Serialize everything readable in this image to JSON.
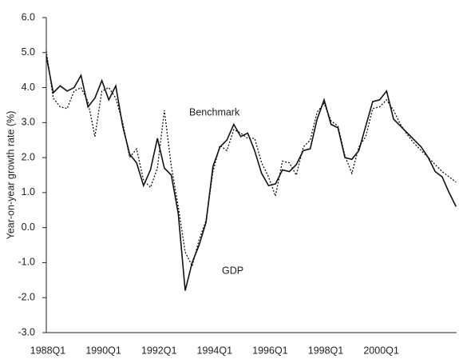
{
  "chart_data": {
    "type": "line",
    "y_label": "Year-on-year growth rate (%)",
    "annotations": [
      "Benchmark",
      "GDP"
    ],
    "categories": [
      "1988Q1",
      null,
      null,
      null,
      null,
      null,
      null,
      null,
      "1990Q1",
      null,
      null,
      null,
      null,
      null,
      null,
      null,
      "1992Q1",
      null,
      null,
      null,
      null,
      null,
      null,
      null,
      "1994Q1",
      null,
      null,
      null,
      null,
      null,
      null,
      null,
      "1996Q1",
      null,
      null,
      null,
      null,
      null,
      null,
      null,
      "1998Q1",
      null,
      null,
      null,
      null,
      null,
      null,
      null,
      "2000Q1",
      null,
      null,
      null,
      null,
      null,
      null,
      null,
      null,
      null,
      null,
      null
    ],
    "series": [
      {
        "name": "GDP",
        "color": "#111111",
        "style": "solid",
        "values": [
          4.9,
          3.85,
          4.05,
          3.9,
          4.0,
          4.35,
          3.45,
          3.7,
          4.2,
          3.65,
          4.05,
          2.9,
          2.1,
          1.85,
          1.2,
          1.65,
          2.55,
          1.7,
          1.5,
          0.4,
          -1.8,
          -1.0,
          -0.5,
          0.15,
          1.75,
          2.3,
          2.5,
          2.95,
          2.6,
          2.7,
          2.2,
          1.55,
          1.2,
          1.25,
          1.65,
          1.6,
          1.8,
          2.2,
          2.25,
          3.1,
          3.65,
          2.95,
          2.85,
          2.0,
          1.95,
          2.2,
          2.9,
          3.6,
          3.65,
          3.9,
          3.1,
          2.9,
          2.7,
          2.5,
          2.3,
          2.0,
          1.6,
          1.45,
          1.0,
          0.6
        ]
      },
      {
        "name": "Benchmark",
        "color": "#111111",
        "style": "dotted",
        "values": [
          5.05,
          3.7,
          3.45,
          3.4,
          3.9,
          4.0,
          3.6,
          2.6,
          3.9,
          4.0,
          3.7,
          3.0,
          2.0,
          2.25,
          1.35,
          1.15,
          1.7,
          3.35,
          1.75,
          0.6,
          -0.7,
          -1.1,
          -0.35,
          0.2,
          1.6,
          2.35,
          2.2,
          2.8,
          2.7,
          2.55,
          2.55,
          1.85,
          1.45,
          0.9,
          1.9,
          1.85,
          1.5,
          2.3,
          2.5,
          3.3,
          3.55,
          3.05,
          2.9,
          2.05,
          1.55,
          2.3,
          2.6,
          3.4,
          3.45,
          3.65,
          3.35,
          2.95,
          2.65,
          2.4,
          2.2,
          2.0,
          1.8,
          1.6,
          1.45,
          1.3
        ]
      }
    ],
    "ylim": [
      -3,
      6
    ],
    "yticks": [
      {
        "value": -3,
        "label": "-3.0"
      },
      {
        "value": -2,
        "label": "-2.0"
      },
      {
        "value": -1,
        "label": "-1.0"
      },
      {
        "value": 0,
        "label": "0.0"
      },
      {
        "value": 1,
        "label": "1.0"
      },
      {
        "value": 2,
        "label": "2.0"
      },
      {
        "value": 3,
        "label": "3.0"
      },
      {
        "value": 4,
        "label": "4.0"
      },
      {
        "value": 5,
        "label": "5.0"
      },
      {
        "value": 6,
        "label": "6.0"
      }
    ],
    "grid": false
  }
}
